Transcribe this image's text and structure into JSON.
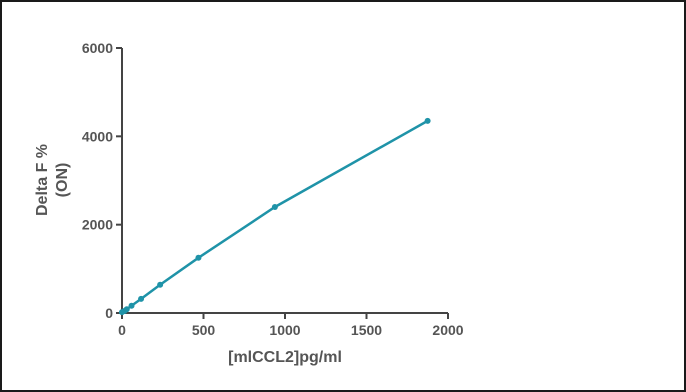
{
  "chart_data": {
    "type": "line",
    "title": "",
    "xlabel": "[mlCCL2]pg/ml",
    "ylabel_lines": [
      "Delta F %",
      "(ON)"
    ],
    "xlim": [
      0,
      2000
    ],
    "ylim": [
      0,
      6000
    ],
    "x_ticks": [
      0,
      500,
      1000,
      1500,
      2000
    ],
    "y_ticks": [
      0,
      2000,
      4000,
      6000
    ],
    "grid": false,
    "legend": "none",
    "series": [
      {
        "color": "#1f93a8",
        "x": [
          0,
          14.6,
          29.2,
          58.5,
          117,
          234,
          469,
          938,
          1875
        ],
        "y": [
          20,
          45,
          85,
          165,
          320,
          640,
          1250,
          2400,
          4350
        ]
      }
    ]
  }
}
